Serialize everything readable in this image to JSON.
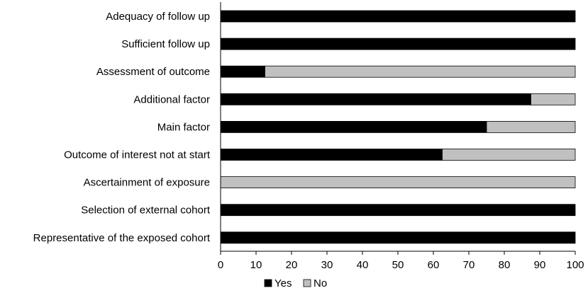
{
  "chart_data": {
    "type": "bar",
    "orientation": "horizontal",
    "stacked": true,
    "categories": [
      "Adequacy of follow up",
      "Sufficient follow up",
      "Assessment of outcome",
      "Additional factor",
      "Main factor",
      "Outcome of interest not at start",
      "Ascertainment of exposure",
      "Selection of external cohort",
      "Representative of the exposed cohort"
    ],
    "series": [
      {
        "name": "Yes",
        "color": "#000000",
        "values": [
          100,
          100,
          12.5,
          87.5,
          75,
          62.5,
          0,
          100,
          100
        ]
      },
      {
        "name": "No",
        "color": "#c0c0c0",
        "values": [
          0,
          0,
          87.5,
          12.5,
          25,
          37.5,
          100,
          0,
          0
        ]
      }
    ],
    "xlim": [
      0,
      100
    ],
    "xticks": [
      0,
      10,
      20,
      30,
      40,
      50,
      60,
      70,
      80,
      90,
      100
    ],
    "title": "",
    "xlabel": "",
    "ylabel": "",
    "grid": false,
    "legend_position": "bottom-center"
  }
}
